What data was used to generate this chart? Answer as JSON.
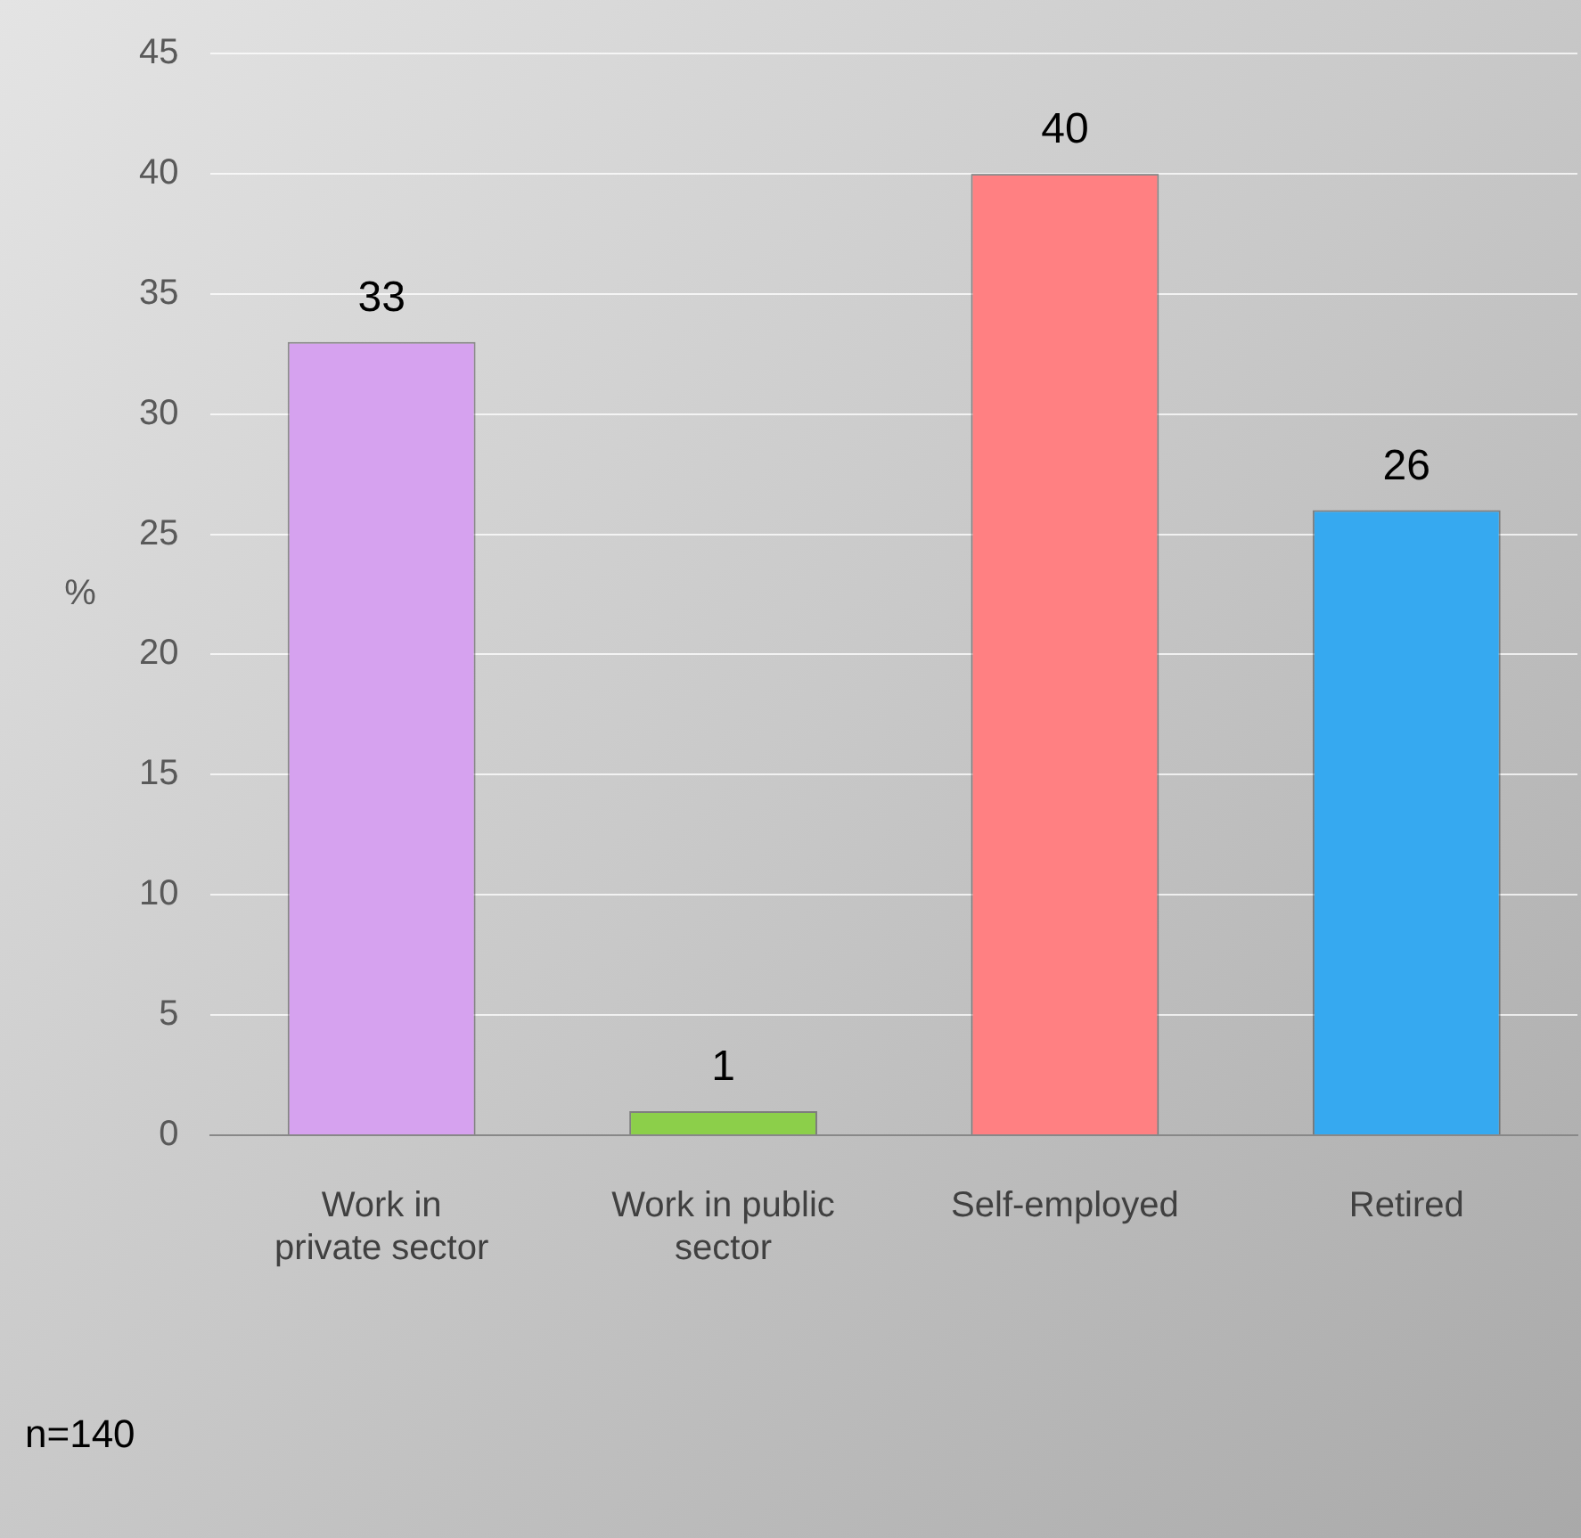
{
  "chart_data": {
    "type": "bar",
    "ylabel": "%",
    "categories": [
      "Work in private sector",
      "Work in public sector",
      "Self-employed",
      "Retired"
    ],
    "values": [
      33,
      1,
      40,
      26
    ],
    "colors": [
      "#d6a2ef",
      "#8ccf4a",
      "#ff8082",
      "#36a9f0"
    ],
    "ylim": [
      0,
      45
    ],
    "yticks": [
      0,
      5,
      10,
      15,
      20,
      25,
      30,
      35,
      40,
      45
    ],
    "grid": "y",
    "data_labels": true,
    "legend": false,
    "annotations": [
      "n=140"
    ]
  }
}
